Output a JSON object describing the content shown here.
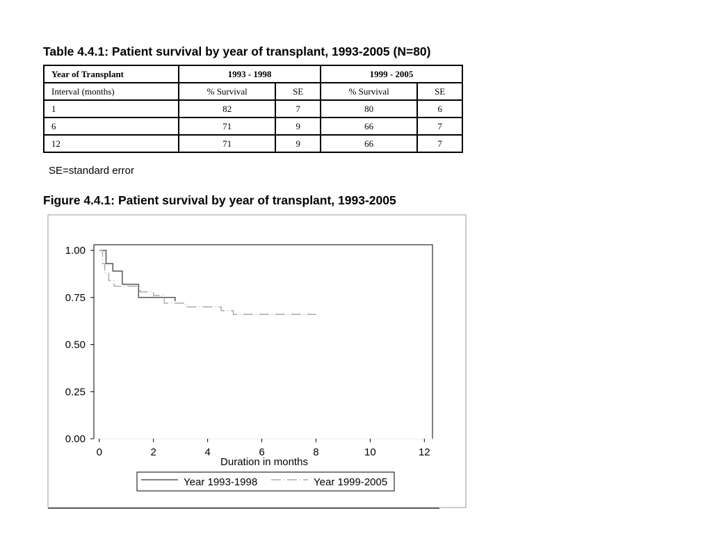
{
  "table": {
    "title": "Table 4.4.1: Patient survival by year of transplant, 1993-2005 (N=80)",
    "header": {
      "col0": "Year of Transplant",
      "group1": "1993 - 1998",
      "group2": "1999 - 2005"
    },
    "subheader": [
      "Interval (months)",
      "% Survival",
      "SE",
      "% Survival",
      "SE"
    ],
    "rows": [
      [
        "1",
        "82",
        "7",
        "80",
        "6"
      ],
      [
        "6",
        "71",
        "9",
        "66",
        "7"
      ],
      [
        "12",
        "71",
        "9",
        "66",
        "7"
      ]
    ],
    "footnote": "SE=standard error"
  },
  "figure": {
    "title": "Figure 4.4.1: Patient survival by year of transplant, 1993-2005"
  },
  "chart_data": {
    "type": "line",
    "title": "",
    "xlabel": "Duration in months",
    "ylabel": "",
    "xlim": [
      -0.2,
      12.3
    ],
    "ylim": [
      0,
      1.03
    ],
    "x_ticks": [
      "0",
      "2",
      "4",
      "6",
      "8",
      "10",
      "12"
    ],
    "y_ticks": [
      "0.00",
      "0.25",
      "0.50",
      "0.75",
      "1.00"
    ],
    "legend_position": "bottom",
    "series": [
      {
        "name": "Year 1993-1998",
        "style": "solid",
        "color": "#555555",
        "points": [
          [
            0,
            1.0
          ],
          [
            0.25,
            1.0
          ],
          [
            0.25,
            0.93
          ],
          [
            0.5,
            0.93
          ],
          [
            0.5,
            0.89
          ],
          [
            0.85,
            0.89
          ],
          [
            0.85,
            0.82
          ],
          [
            1.45,
            0.82
          ],
          [
            1.45,
            0.75
          ],
          [
            2.8,
            0.75
          ],
          [
            2.8,
            0.73
          ]
        ]
      },
      {
        "name": "Year 1999-2005",
        "style": "dashed",
        "color": "#aaaaaa",
        "points": [
          [
            0,
            1.0
          ],
          [
            0.12,
            1.0
          ],
          [
            0.12,
            0.93
          ],
          [
            0.2,
            0.93
          ],
          [
            0.2,
            0.88
          ],
          [
            0.35,
            0.88
          ],
          [
            0.35,
            0.84
          ],
          [
            0.55,
            0.84
          ],
          [
            0.55,
            0.81
          ],
          [
            1.5,
            0.81
          ],
          [
            1.5,
            0.78
          ],
          [
            2.0,
            0.78
          ],
          [
            2.0,
            0.76
          ],
          [
            2.4,
            0.76
          ],
          [
            2.4,
            0.72
          ],
          [
            3.2,
            0.72
          ],
          [
            3.2,
            0.7
          ],
          [
            4.5,
            0.7
          ],
          [
            4.5,
            0.68
          ],
          [
            4.95,
            0.68
          ],
          [
            4.95,
            0.66
          ],
          [
            8.0,
            0.66
          ]
        ]
      }
    ]
  }
}
